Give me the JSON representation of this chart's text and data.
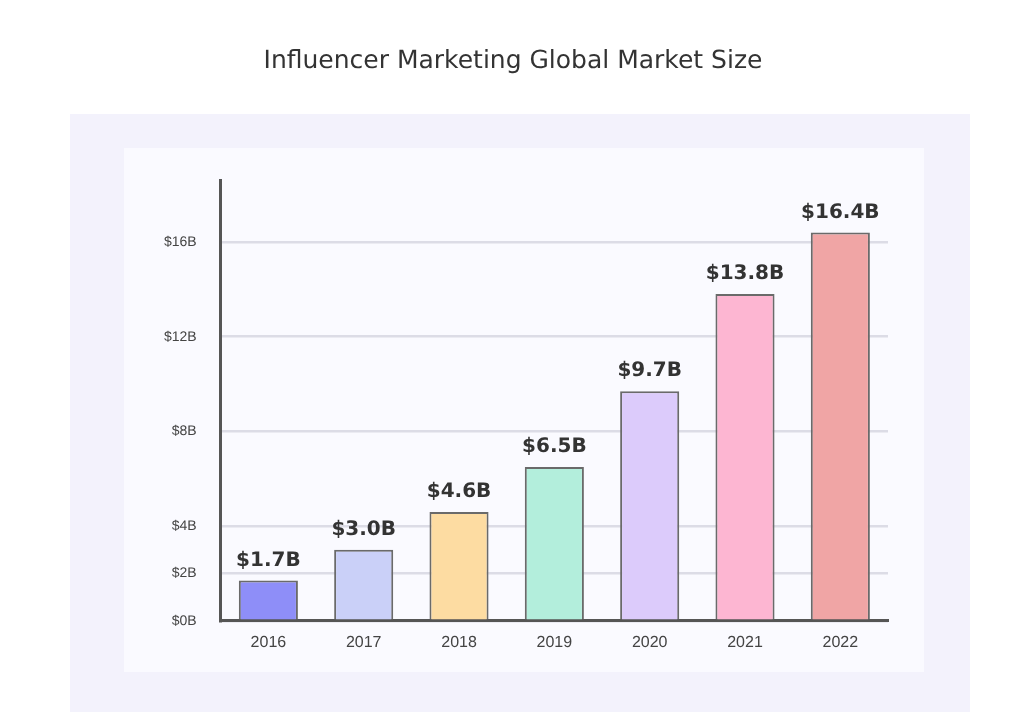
{
  "chart_data": {
    "type": "bar",
    "title": "Influencer Marketing Global Market Size",
    "categories": [
      "2016",
      "2017",
      "2018",
      "2019",
      "2020",
      "2021",
      "2022"
    ],
    "values": [
      1.7,
      3.0,
      4.6,
      6.5,
      9.7,
      13.8,
      16.4
    ],
    "colors": [
      "#8e8ef8",
      "#cad0f8",
      "#fddca2",
      "#b3eedc",
      "#dccbfb",
      "#fdb6d2",
      "#f0a5a5"
    ],
    "value_labels": [
      "$1.7B",
      "$3.0B",
      "$4.6B",
      "$6.5B",
      "$9.7B",
      "$13.8B",
      "$16.4B"
    ],
    "ylim": [
      0,
      18.6
    ],
    "yticks": [
      {
        "value": 0,
        "label": "$0B"
      },
      {
        "value": 2,
        "label": "$2B"
      },
      {
        "value": 4,
        "label": "$4B"
      },
      {
        "value": 8,
        "label": "$8B"
      },
      {
        "value": 12,
        "label": "$12B"
      },
      {
        "value": 16,
        "label": "$16B"
      }
    ],
    "grid": "y",
    "legend": false
  }
}
